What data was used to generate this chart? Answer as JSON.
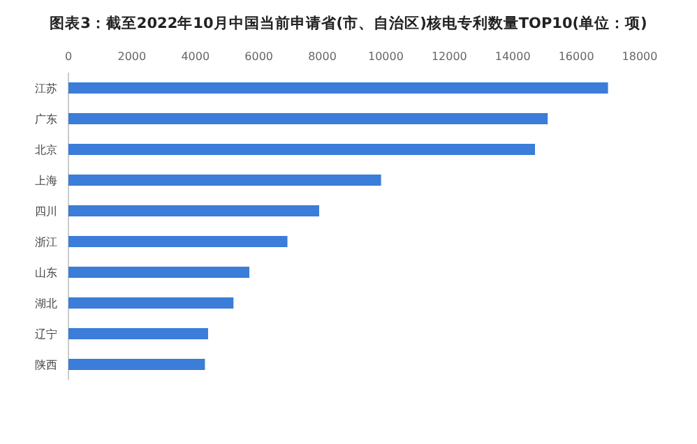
{
  "chart_data": {
    "type": "bar",
    "orientation": "horizontal",
    "title": "图表3：截至2022年10月中国当前申请省(市、自治区)核电专利数量TOP10(单位：项)",
    "categories": [
      "江苏",
      "广东",
      "北京",
      "上海",
      "四川",
      "浙江",
      "山东",
      "湖北",
      "辽宁",
      "陕西"
    ],
    "values": [
      17000,
      15100,
      14700,
      9850,
      7900,
      6900,
      5700,
      5200,
      4400,
      4300
    ],
    "color": "#3b7dd8",
    "xlim": [
      0,
      18000
    ],
    "xticks": [
      0,
      2000,
      4000,
      6000,
      8000,
      10000,
      12000,
      14000,
      16000,
      18000
    ]
  }
}
